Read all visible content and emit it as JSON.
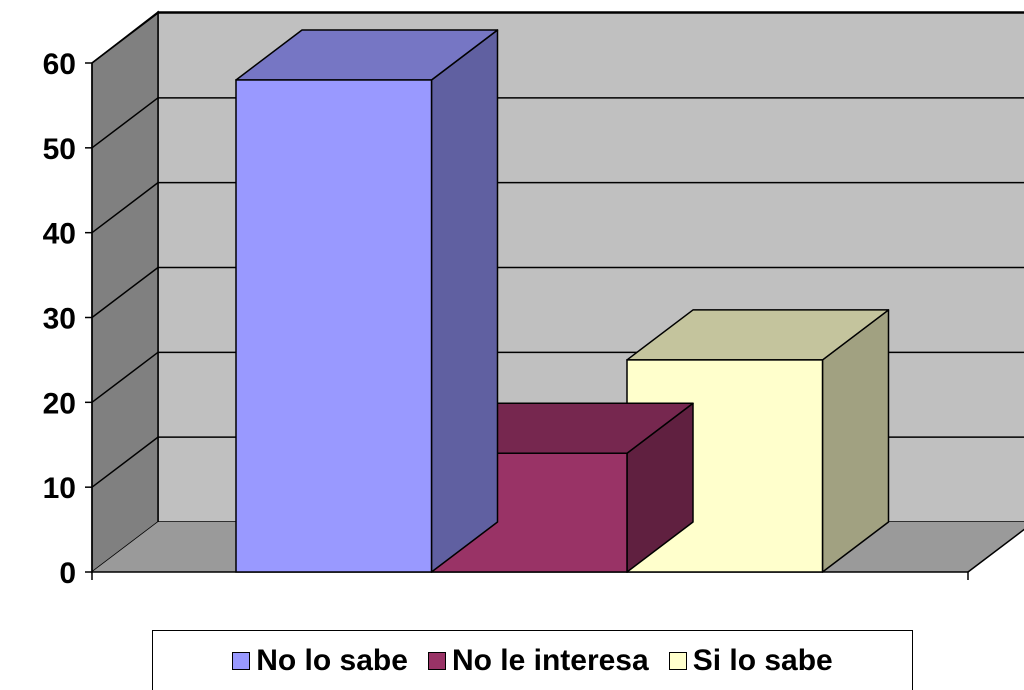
{
  "chart_data": {
    "type": "bar",
    "view": "3d",
    "categories": [
      "No lo sabe",
      "No le interesa",
      "Si lo sabe"
    ],
    "values": [
      58,
      14,
      25
    ],
    "colors": {
      "No lo sabe": "#9999FF",
      "No le interesa": "#993366",
      "Si lo sabe": "#FFFFCC"
    },
    "wall_color": "#C0C0C0",
    "ylim": [
      0,
      60
    ],
    "yticks": [
      "0",
      "10",
      "20",
      "30",
      "40",
      "50",
      "60"
    ],
    "grid": true,
    "legend": {
      "position": "bottom",
      "entries": [
        "No lo sabe",
        "No le interesa",
        "Si lo sabe"
      ]
    },
    "title": "",
    "xlabel": "",
    "ylabel": ""
  }
}
